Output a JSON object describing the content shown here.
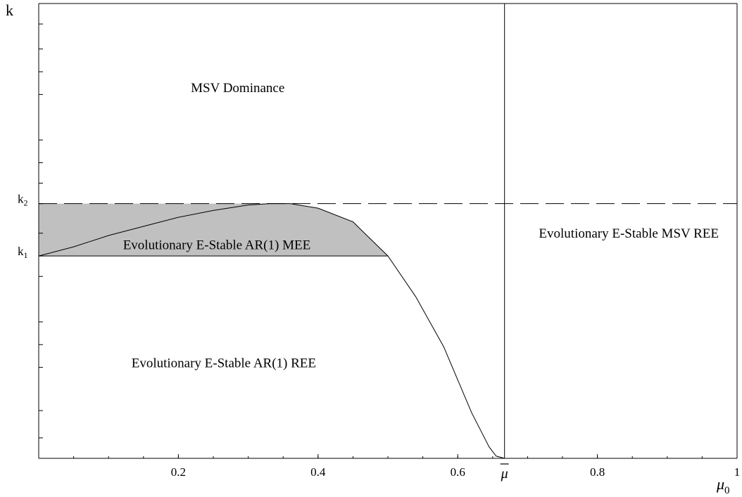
{
  "chart_data": {
    "type": "area",
    "title": "",
    "xlabel": "μ",
    "xlabel_subscript": "0",
    "ylabel": "k",
    "xlim": [
      0,
      1
    ],
    "ylim": [
      0,
      1
    ],
    "x_ticks": [
      {
        "value": 0.2,
        "label": "0.2"
      },
      {
        "value": 0.4,
        "label": "0.4"
      },
      {
        "value": 0.6,
        "label": "0.6"
      },
      {
        "value": 0.8,
        "label": "0.8"
      },
      {
        "value": 1.0,
        "label": "1"
      }
    ],
    "mu_bar": {
      "value": 0.667,
      "label": "μ"
    },
    "y_markers": [
      {
        "name": "k1",
        "value": 0.445,
        "base": "k",
        "sub": "1"
      },
      {
        "name": "k2",
        "value": 0.56,
        "base": "k",
        "sub": "2"
      }
    ],
    "y_tick_values": [
      0.045,
      0.105,
      0.2,
      0.25,
      0.3,
      0.4,
      0.495,
      0.605,
      0.65,
      0.7,
      0.8,
      0.85,
      0.9,
      0.955
    ],
    "boundary_curve": {
      "x": [
        0,
        0.05,
        0.1,
        0.15,
        0.2,
        0.25,
        0.3,
        0.33,
        0.36,
        0.4,
        0.45,
        0.5,
        0.54,
        0.58,
        0.62,
        0.645,
        0.655,
        0.667
      ],
      "y": [
        0.445,
        0.465,
        0.49,
        0.51,
        0.53,
        0.545,
        0.557,
        0.56,
        0.56,
        0.55,
        0.52,
        0.445,
        0.355,
        0.245,
        0.1,
        0.025,
        0.005,
        0
      ]
    },
    "shaded_region": {
      "label": "Evolutionary E-Stable AR(1) MEE",
      "color": "#c0c0c0"
    },
    "regions": [
      {
        "name": "msv-dominance",
        "label": "MSV Dominance",
        "x": 0.285,
        "y": 0.805
      },
      {
        "name": "ar1-mee",
        "label": "Evolutionary E-Stable AR(1) MEE",
        "x": 0.255,
        "y": 0.46
      },
      {
        "name": "ar1-ree",
        "label": "Evolutionary E-Stable AR(1) REE",
        "x": 0.265,
        "y": 0.2
      },
      {
        "name": "msv-ree",
        "label": "Evolutionary E-Stable MSV REE",
        "x": 0.845,
        "y": 0.485
      }
    ]
  }
}
